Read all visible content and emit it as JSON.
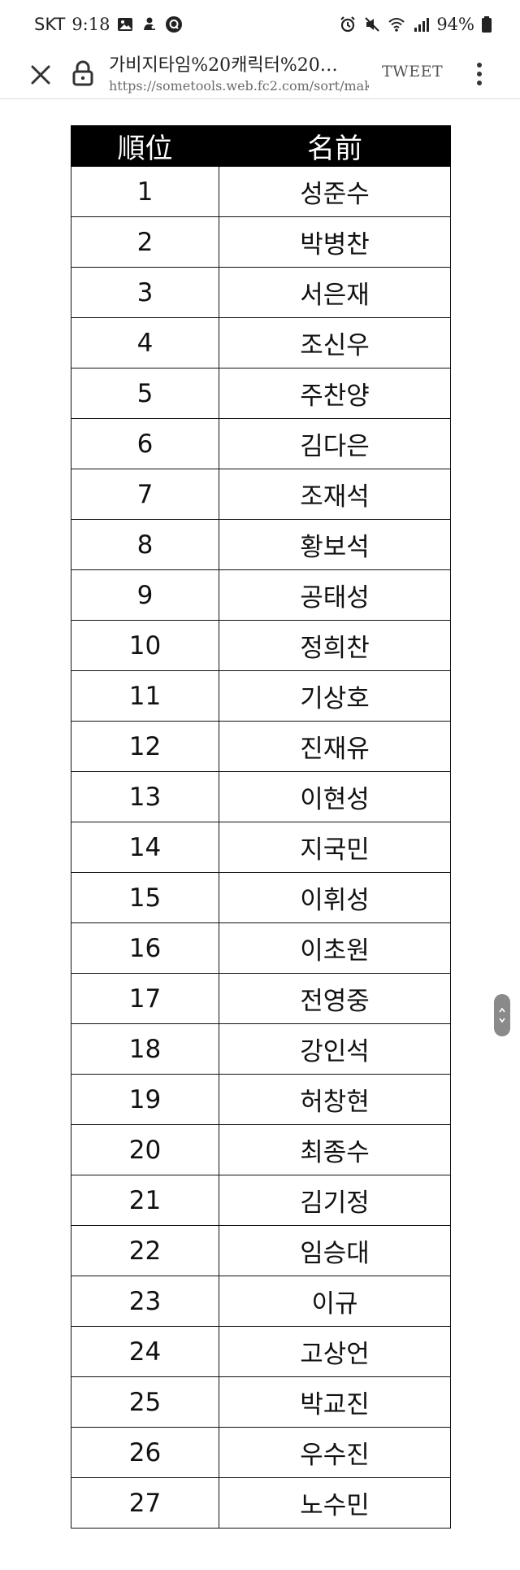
{
  "status_bar": {
    "carrier": "SKT",
    "time": "9:18",
    "battery": "94%",
    "icons": [
      "gallery-icon",
      "game-icon",
      "q-app-icon",
      "alarm-icon",
      "mute-icon",
      "wifi-icon",
      "signal-icon",
      "battery-icon"
    ]
  },
  "browser": {
    "title": "가비지타임%20캐릭터%20…",
    "url": "https://sometools.web.fc2.com/sort/mak",
    "tweet_label": "TWEET",
    "icons": [
      "close-icon",
      "lock-icon",
      "more-vert-icon"
    ]
  },
  "table": {
    "headers": [
      "順位",
      "名前"
    ],
    "rows": [
      {
        "rank": "1",
        "name": "성준수"
      },
      {
        "rank": "2",
        "name": "박병찬"
      },
      {
        "rank": "3",
        "name": "서은재"
      },
      {
        "rank": "4",
        "name": "조신우"
      },
      {
        "rank": "5",
        "name": "주찬양"
      },
      {
        "rank": "6",
        "name": "김다은"
      },
      {
        "rank": "7",
        "name": "조재석"
      },
      {
        "rank": "8",
        "name": "황보석"
      },
      {
        "rank": "9",
        "name": "공태성"
      },
      {
        "rank": "10",
        "name": "정희찬"
      },
      {
        "rank": "11",
        "name": "기상호"
      },
      {
        "rank": "12",
        "name": "진재유"
      },
      {
        "rank": "13",
        "name": "이현성"
      },
      {
        "rank": "14",
        "name": "지국민"
      },
      {
        "rank": "15",
        "name": "이휘성"
      },
      {
        "rank": "16",
        "name": "이초원"
      },
      {
        "rank": "17",
        "name": "전영중"
      },
      {
        "rank": "18",
        "name": "강인석"
      },
      {
        "rank": "19",
        "name": "허창현"
      },
      {
        "rank": "20",
        "name": "최종수"
      },
      {
        "rank": "21",
        "name": "김기정"
      },
      {
        "rank": "22",
        "name": "임승대"
      },
      {
        "rank": "23",
        "name": "이규"
      },
      {
        "rank": "24",
        "name": "고상언"
      },
      {
        "rank": "25",
        "name": "박교진"
      },
      {
        "rank": "26",
        "name": "우수진"
      },
      {
        "rank": "27",
        "name": "노수민"
      }
    ]
  },
  "colors": {
    "header_bg": "#000000",
    "header_text": "#ffffff",
    "border": "#111111",
    "scroll_handle": "#8a8a8a"
  }
}
